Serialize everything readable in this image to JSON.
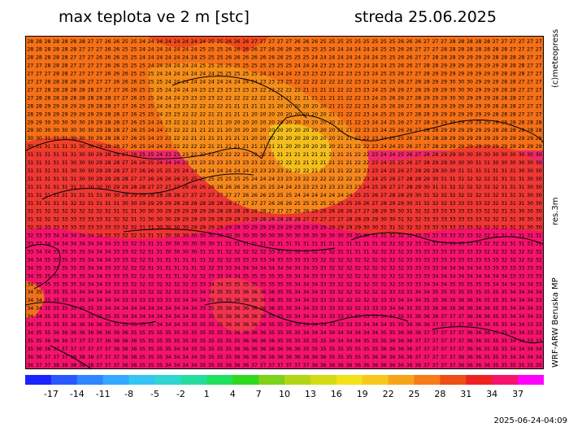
{
  "header": {
    "title": "max teplota ve 2 m [stc]",
    "date": "streda 25.06.2025"
  },
  "side": {
    "copyright": "(c)meteopress",
    "resolution": "res.3m",
    "model": "WRF-ARW Beruska MP"
  },
  "footer": {
    "timestamp": "2025-06-24-04:09"
  },
  "colorbar": {
    "tick_labels": [
      "-17",
      "-14",
      "-11",
      "-8",
      "-5",
      "-2",
      "1",
      "4",
      "7",
      "10",
      "13",
      "16",
      "19",
      "22",
      "25",
      "28",
      "31",
      "34",
      "37"
    ],
    "colors": [
      "#1a22ff",
      "#2a58ff",
      "#2f86ff",
      "#32a9ff",
      "#33c6f2",
      "#2fd6cf",
      "#25dca0",
      "#20e060",
      "#30d81e",
      "#7ed219",
      "#b2d515",
      "#d4db12",
      "#f3e11a",
      "#f8c71c",
      "#f8a419",
      "#f57c16",
      "#ee4f14",
      "#ee2222",
      "#f5136c",
      "#ff00ff"
    ]
  },
  "map": {
    "value_range": [
      16,
      38
    ],
    "example_values": [
      "29",
      "28",
      "27",
      "33",
      "34",
      "35",
      "36",
      "20",
      "21"
    ]
  }
}
